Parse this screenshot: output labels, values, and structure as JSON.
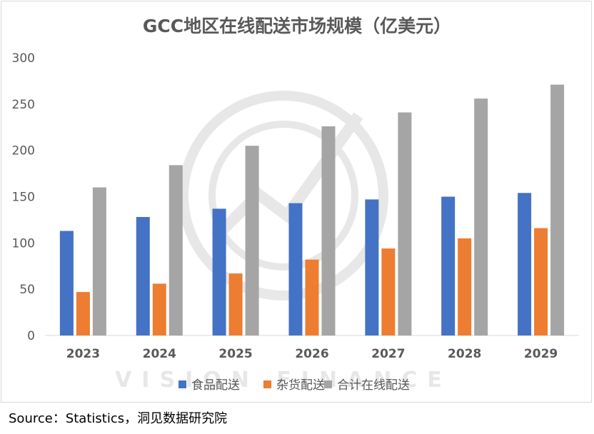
{
  "source_text": "Source：Statistics，洞见数据研究院",
  "watermark_text": "VISION FINANCE",
  "chart_data": {
    "type": "bar",
    "title": "GCC地区在线配送市场规模（亿美元）",
    "xlabel": "",
    "ylabel": "",
    "ylim": [
      0,
      300
    ],
    "yticks": [
      "0",
      "50",
      "100",
      "150",
      "200",
      "250",
      "300"
    ],
    "grid": false,
    "legend_position": "bottom",
    "categories": [
      "2023",
      "2024",
      "2025",
      "2026",
      "2027",
      "2028",
      "2029"
    ],
    "series": [
      {
        "name": "食品配送",
        "color": "#4472C4",
        "values": [
          113,
          128,
          137,
          143,
          147,
          150,
          154
        ]
      },
      {
        "name": "杂货配送",
        "color": "#ED7D31",
        "values": [
          47,
          56,
          67,
          82,
          94,
          105,
          116
        ]
      },
      {
        "name": "合计在线配送",
        "color": "#A5A5A5",
        "values": [
          160,
          184,
          205,
          226,
          241,
          256,
          271
        ]
      }
    ]
  }
}
